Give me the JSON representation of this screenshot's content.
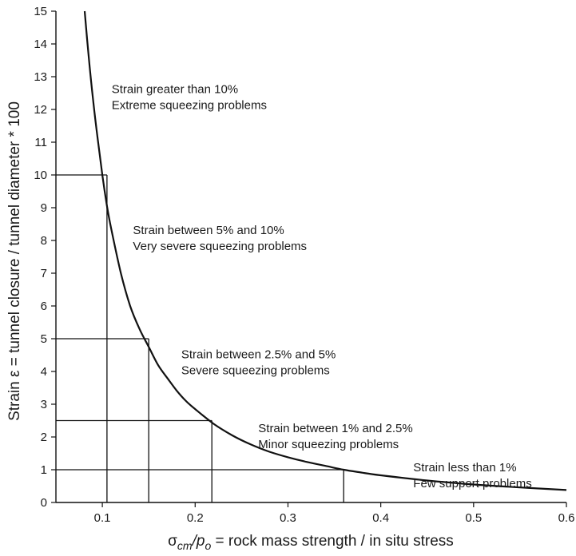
{
  "chart_data": {
    "type": "line",
    "xlabel": "σcm/po = rock mass strength / in situ stress",
    "xlabel_parts": {
      "sigma": "σ",
      "sigma_sub": "cm",
      "slash": "/p",
      "p_sub": "o",
      "rest": " = rock mass strength / in situ stress"
    },
    "ylabel": "Strain ε = tunnel closure / tunnel diameter * 100",
    "xlim": [
      0.05,
      0.6
    ],
    "ylim": [
      0,
      15
    ],
    "x_ticks": [
      "0.1",
      "0.2",
      "0.3",
      "0.4",
      "0.5",
      "0.6"
    ],
    "x_tick_values": [
      0.1,
      0.2,
      0.3,
      0.4,
      0.5,
      0.6
    ],
    "y_ticks": [
      "0",
      "1",
      "2",
      "3",
      "4",
      "5",
      "6",
      "7",
      "8",
      "9",
      "10",
      "11",
      "12",
      "13",
      "14",
      "15"
    ],
    "y_tick_values": [
      0,
      1,
      2,
      3,
      4,
      5,
      6,
      7,
      8,
      9,
      10,
      11,
      12,
      13,
      14,
      15
    ],
    "curve": {
      "x": [
        0.081,
        0.085,
        0.09,
        0.095,
        0.1,
        0.105,
        0.11,
        0.12,
        0.13,
        0.14,
        0.15,
        0.16,
        0.17,
        0.18,
        0.19,
        0.2,
        0.22,
        0.24,
        0.26,
        0.28,
        0.3,
        0.32,
        0.34,
        0.36,
        0.38,
        0.4,
        0.45,
        0.5,
        0.55,
        0.6
      ],
      "y": [
        15.0,
        13.7,
        12.3,
        11.1,
        10.0,
        9.05,
        8.3,
        7.0,
        6.0,
        5.3,
        4.75,
        4.2,
        3.8,
        3.42,
        3.1,
        2.85,
        2.4,
        2.05,
        1.77,
        1.55,
        1.38,
        1.24,
        1.12,
        1.0,
        0.91,
        0.83,
        0.67,
        0.55,
        0.46,
        0.38
      ]
    },
    "thresholds": [
      {
        "x": 0.105,
        "y": 10
      },
      {
        "x": 0.15,
        "y": 5
      },
      {
        "x": 0.218,
        "y": 2.5
      },
      {
        "x": 0.36,
        "y": 1
      }
    ],
    "annotations": [
      {
        "line1": "Strain greater than 10%",
        "line2": "Extreme squeezing problems",
        "x": 0.11,
        "y": 12.5
      },
      {
        "line1": "Strain between 5% and 10%",
        "line2": "Very severe squeezing problems",
        "x": 0.133,
        "y": 8.2
      },
      {
        "line1": "Strain between 2.5% and 5%",
        "line2": "Severe squeezing problems",
        "x": 0.185,
        "y": 4.4
      },
      {
        "line1": "Strain between 1% and 2.5%",
        "line2": "Minor squeezing problems",
        "x": 0.268,
        "y": 2.15
      },
      {
        "line1": "Strain less than 1%",
        "line2": "Few support problems",
        "x": 0.435,
        "y": 0.95
      }
    ],
    "grid": false,
    "legend": "none",
    "line_color": "#111111"
  }
}
